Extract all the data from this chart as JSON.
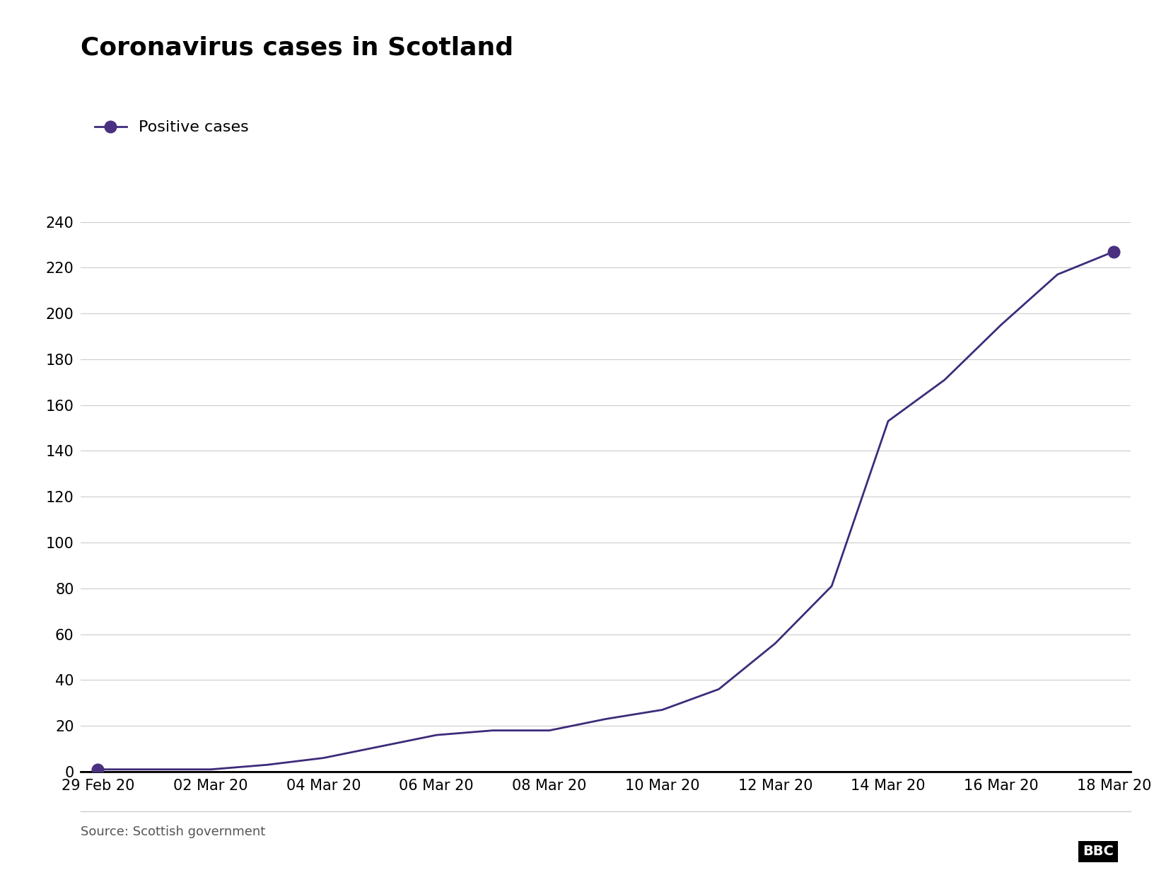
{
  "title": "Coronavirus cases in Scotland",
  "legend_label": "Positive cases",
  "source": "Source: Scottish government",
  "line_color": "#3d2b7a",
  "marker_color": "#4a3080",
  "background_color": "#ffffff",
  "dates": [
    "29 Feb 20",
    "01 Mar 20",
    "02 Mar 20",
    "03 Mar 20",
    "04 Mar 20",
    "05 Mar 20",
    "06 Mar 20",
    "07 Mar 20",
    "08 Mar 20",
    "09 Mar 20",
    "10 Mar 20",
    "11 Mar 20",
    "12 Mar 20",
    "13 Mar 20",
    "14 Mar 20",
    "15 Mar 20",
    "16 Mar 20",
    "17 Mar 20",
    "18 Mar 20"
  ],
  "values": [
    1,
    1,
    1,
    3,
    6,
    11,
    16,
    18,
    18,
    23,
    27,
    36,
    56,
    81,
    153,
    171,
    195,
    217,
    227
  ],
  "x_tick_labels": [
    "29 Feb 20",
    "02 Mar 20",
    "04 Mar 20",
    "06 Mar 20",
    "08 Mar 20",
    "10 Mar 20",
    "12 Mar 20",
    "14 Mar 20",
    "16 Mar 20",
    "18 Mar 20"
  ],
  "x_tick_positions": [
    0,
    2,
    4,
    6,
    8,
    10,
    12,
    14,
    16,
    18
  ],
  "ylim": [
    0,
    240
  ],
  "yticks": [
    0,
    20,
    40,
    60,
    80,
    100,
    120,
    140,
    160,
    180,
    200,
    220,
    240
  ],
  "title_fontsize": 26,
  "tick_fontsize": 15,
  "legend_fontsize": 16,
  "source_fontsize": 13,
  "line_width": 2.0,
  "marker_size": 12
}
